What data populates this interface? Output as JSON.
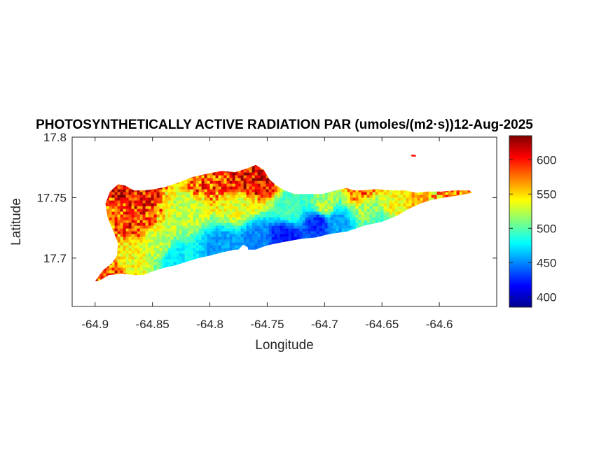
{
  "chart_data": {
    "type": "heatmap",
    "title": "PHOTOSYNTHETICALLY ACTIVE RADIATION PAR (umoles/(m2·s))12-Aug-2025",
    "xlabel": "Longitude",
    "ylabel": "Latitude",
    "xlim": [
      -64.92,
      -64.55
    ],
    "ylim": [
      17.66,
      17.8
    ],
    "xticks": [
      -64.9,
      -64.85,
      -64.8,
      -64.75,
      -64.7,
      -64.65,
      -64.6
    ],
    "xtick_labels": [
      "-64.9",
      "-64.85",
      "-64.8",
      "-64.75",
      "-64.7",
      "-64.65",
      "-64.6"
    ],
    "yticks": [
      17.7,
      17.75,
      17.8
    ],
    "ytick_labels": [
      "17.7",
      "17.75",
      "17.8"
    ],
    "colormap": "jet",
    "colorbar": {
      "range": [
        385,
        635
      ],
      "ticks": [
        400,
        450,
        500,
        550,
        600
      ],
      "tick_labels": [
        "400",
        "450",
        "500",
        "550",
        "600"
      ]
    },
    "region_outline": [
      [
        -64.9,
        17.681
      ],
      [
        -64.893,
        17.69
      ],
      [
        -64.885,
        17.696
      ],
      [
        -64.881,
        17.702
      ],
      [
        -64.88,
        17.712
      ],
      [
        -64.884,
        17.722
      ],
      [
        -64.889,
        17.733
      ],
      [
        -64.891,
        17.745
      ],
      [
        -64.887,
        17.755
      ],
      [
        -64.88,
        17.761
      ],
      [
        -64.874,
        17.76
      ],
      [
        -64.866,
        17.756
      ],
      [
        -64.857,
        17.756
      ],
      [
        -64.848,
        17.757
      ],
      [
        -64.838,
        17.759
      ],
      [
        -64.826,
        17.763
      ],
      [
        -64.815,
        17.767
      ],
      [
        -64.801,
        17.77
      ],
      [
        -64.79,
        17.772
      ],
      [
        -64.778,
        17.771
      ],
      [
        -64.768,
        17.774
      ],
      [
        -64.76,
        17.777
      ],
      [
        -64.753,
        17.773
      ],
      [
        -64.748,
        17.765
      ],
      [
        -64.742,
        17.76
      ],
      [
        -64.735,
        17.756
      ],
      [
        -64.726,
        17.753
      ],
      [
        -64.714,
        17.753
      ],
      [
        -64.702,
        17.753
      ],
      [
        -64.69,
        17.756
      ],
      [
        -64.681,
        17.758
      ],
      [
        -64.674,
        17.756
      ],
      [
        -64.668,
        17.756
      ],
      [
        -64.655,
        17.757
      ],
      [
        -64.642,
        17.756
      ],
      [
        -64.63,
        17.756
      ],
      [
        -64.62,
        17.754
      ],
      [
        -64.61,
        17.755
      ],
      [
        -64.598,
        17.755
      ],
      [
        -64.586,
        17.756
      ],
      [
        -64.574,
        17.756
      ],
      [
        -64.571,
        17.754
      ],
      [
        -64.582,
        17.752
      ],
      [
        -64.596,
        17.75
      ],
      [
        -64.607,
        17.748
      ],
      [
        -64.617,
        17.745
      ],
      [
        -64.628,
        17.74
      ],
      [
        -64.637,
        17.735
      ],
      [
        -64.65,
        17.73
      ],
      [
        -64.665,
        17.727
      ],
      [
        -64.68,
        17.722
      ],
      [
        -64.695,
        17.72
      ],
      [
        -64.708,
        17.717
      ],
      [
        -64.72,
        17.716
      ],
      [
        -64.732,
        17.714
      ],
      [
        -64.743,
        17.712
      ],
      [
        -64.752,
        17.71
      ],
      [
        -64.76,
        17.707
      ],
      [
        -64.77,
        17.707
      ],
      [
        -64.778,
        17.707
      ],
      [
        -64.788,
        17.705
      ],
      [
        -64.8,
        17.702
      ],
      [
        -64.81,
        17.7
      ],
      [
        -64.82,
        17.697
      ],
      [
        -64.83,
        17.694
      ],
      [
        -64.84,
        17.692
      ],
      [
        -64.85,
        17.689
      ],
      [
        -64.858,
        17.686
      ],
      [
        -64.866,
        17.686
      ],
      [
        -64.876,
        17.687
      ],
      [
        -64.888,
        17.686
      ],
      [
        -64.897,
        17.681
      ]
    ],
    "bays": [
      [
        [
          -64.775,
          17.707
        ],
        [
          -64.771,
          17.711
        ],
        [
          -64.767,
          17.709
        ],
        [
          -64.765,
          17.699
        ],
        [
          -64.768,
          17.697
        ],
        [
          -64.773,
          17.699
        ]
      ]
    ],
    "islets": [
      [
        [
          -64.625,
          17.7855
        ],
        [
          -64.621,
          17.7855
        ],
        [
          -64.62,
          17.784
        ],
        [
          -64.624,
          17.784
        ]
      ]
    ],
    "field_anchors": [
      {
        "lon": -64.878,
        "lat": 17.757,
        "value": 612
      },
      {
        "lon": -64.86,
        "lat": 17.752,
        "value": 598
      },
      {
        "lon": -64.805,
        "lat": 17.762,
        "value": 585
      },
      {
        "lon": -64.77,
        "lat": 17.766,
        "value": 600
      },
      {
        "lon": -64.757,
        "lat": 17.764,
        "value": 605
      },
      {
        "lon": -64.865,
        "lat": 17.733,
        "value": 590
      },
      {
        "lon": -64.885,
        "lat": 17.74,
        "value": 575
      },
      {
        "lon": -64.89,
        "lat": 17.686,
        "value": 585
      },
      {
        "lon": -64.868,
        "lat": 17.7,
        "value": 540
      },
      {
        "lon": -64.845,
        "lat": 17.712,
        "value": 525
      },
      {
        "lon": -64.83,
        "lat": 17.7,
        "value": 475
      },
      {
        "lon": -64.79,
        "lat": 17.71,
        "value": 455
      },
      {
        "lon": -64.76,
        "lat": 17.717,
        "value": 450
      },
      {
        "lon": -64.735,
        "lat": 17.717,
        "value": 420
      },
      {
        "lon": -64.705,
        "lat": 17.73,
        "value": 425
      },
      {
        "lon": -64.69,
        "lat": 17.73,
        "value": 455
      },
      {
        "lon": -64.7,
        "lat": 17.742,
        "value": 520
      },
      {
        "lon": -64.73,
        "lat": 17.741,
        "value": 495
      },
      {
        "lon": -64.775,
        "lat": 17.742,
        "value": 535
      },
      {
        "lon": -64.82,
        "lat": 17.742,
        "value": 525
      },
      {
        "lon": -64.66,
        "lat": 17.744,
        "value": 515
      },
      {
        "lon": -64.665,
        "lat": 17.755,
        "value": 585
      },
      {
        "lon": -64.64,
        "lat": 17.742,
        "value": 540
      },
      {
        "lon": -64.615,
        "lat": 17.75,
        "value": 560
      },
      {
        "lon": -64.585,
        "lat": 17.754,
        "value": 575
      },
      {
        "lon": -64.65,
        "lat": 17.732,
        "value": 495
      }
    ]
  }
}
